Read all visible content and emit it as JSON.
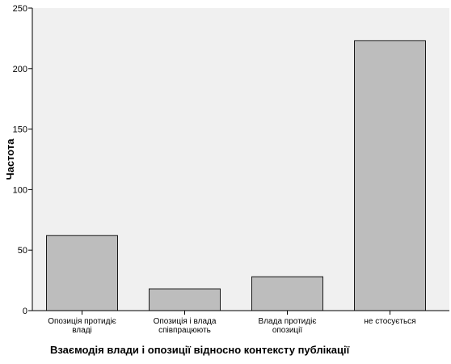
{
  "chart_data": {
    "type": "bar",
    "categories": [
      [
        "Опозиція протидіє",
        "владі"
      ],
      [
        "Опозиція і влада",
        "співпрацюють"
      ],
      [
        "Влада протидіє",
        "опозиції"
      ],
      [
        "не стосується"
      ]
    ],
    "values": [
      62,
      18,
      28,
      223
    ],
    "ylim": [
      0,
      250
    ],
    "yticks": [
      0,
      50,
      100,
      150,
      200,
      250
    ],
    "ylabel": "Частота",
    "xlabel": "Взаємодія влади і опозиції відносно контексту публікації",
    "grid": false,
    "colors": {
      "plot_background": "#f0f0f0",
      "bar_fill": "#bdbdbd",
      "bar_stroke": "#1a1a1a",
      "axis": "#000000"
    }
  }
}
